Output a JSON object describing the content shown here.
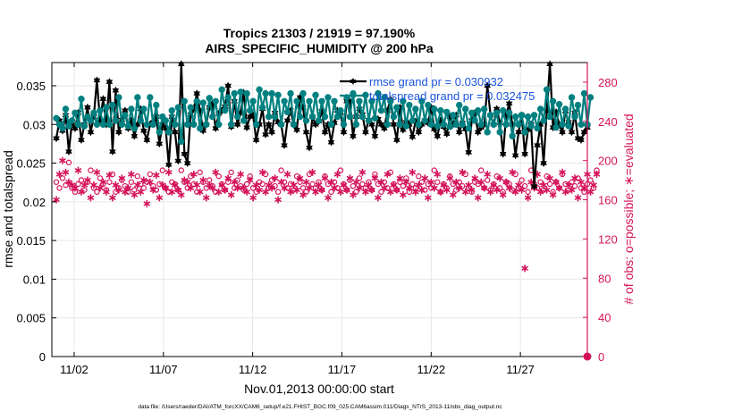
{
  "chart_data": {
    "type": "line",
    "title_lines": [
      "Tropics 21303 / 21919 = 97.190%",
      "AIRS_SPECIFIC_HUMIDITY @ 200 hPa"
    ],
    "xlabel": "Nov.01,2013 00:00:00 start",
    "ylabel_left": "rmse and totalspread",
    "ylabel_right": "# of obs: o=possible; ∗=evaluated",
    "x_ticks": [
      {
        "day": 2,
        "label": "11/02"
      },
      {
        "day": 7,
        "label": "11/07"
      },
      {
        "day": 12,
        "label": "11/12"
      },
      {
        "day": 17,
        "label": "11/17"
      },
      {
        "day": 22,
        "label": "11/22"
      },
      {
        "day": 27,
        "label": "11/27"
      }
    ],
    "xlim": [
      0.75,
      30.75
    ],
    "ylim_left": [
      0,
      0.038
    ],
    "ylim_right": [
      0,
      300
    ],
    "y_ticks_left": [
      "0",
      "0.005",
      "0.01",
      "0.015",
      "0.02",
      "0.025",
      "0.03",
      "0.035"
    ],
    "y_ticks_right": [
      "0",
      "40",
      "80",
      "120",
      "160",
      "200",
      "240",
      "280"
    ],
    "legend": [
      {
        "label": "rmse grand pr = 0.030932",
        "color": "#000000"
      },
      {
        "label": "totalspread grand pr = 0.032475",
        "color": "#008080"
      }
    ],
    "series": [
      {
        "name": "rmse",
        "color": "#000000",
        "marker": "hexagram",
        "values": [
          0.0282,
          0.0305,
          0.0292,
          0.0312,
          0.0265,
          0.0303,
          0.0295,
          0.0315,
          0.028,
          0.03,
          0.0322,
          0.029,
          0.031,
          0.0357,
          0.0305,
          0.0333,
          0.03,
          0.0355,
          0.0265,
          0.0344,
          0.029,
          0.0306,
          0.0318,
          0.0295,
          0.0305,
          0.0285,
          0.03,
          0.032,
          0.0292,
          0.028,
          0.03,
          0.0303,
          0.031,
          0.0275,
          0.03,
          0.0295,
          0.0248,
          0.031,
          0.029,
          0.0253,
          0.0378,
          0.0262,
          0.025,
          0.0313,
          0.032,
          0.034,
          0.0318,
          0.0292,
          0.03,
          0.0322,
          0.0327,
          0.0295,
          0.0314,
          0.0318,
          0.0323,
          0.035,
          0.0297,
          0.033,
          0.03,
          0.0315,
          0.0341,
          0.0296,
          0.031,
          0.0312,
          0.028,
          0.03,
          0.032,
          0.0287,
          0.03,
          0.029,
          0.0315,
          0.0303,
          0.03,
          0.0273,
          0.0305,
          0.0318,
          0.03,
          0.0293,
          0.0335,
          0.0322,
          0.029,
          0.027,
          0.031,
          0.03,
          0.0304,
          0.0317,
          0.029,
          0.03,
          0.0277,
          0.0302,
          0.0318,
          0.0315,
          0.029,
          0.033,
          0.033,
          0.0285,
          0.031,
          0.032,
          0.0313,
          0.029,
          0.0306,
          0.03,
          0.0285,
          0.0307,
          0.03,
          0.0295,
          0.0318,
          0.0332,
          0.03,
          0.028,
          0.0322,
          0.0293,
          0.0303,
          0.03,
          0.0284,
          0.0304,
          0.029,
          0.03,
          0.0305,
          0.0302,
          0.0322,
          0.0294,
          0.0285,
          0.0305,
          0.0297,
          0.0288,
          0.031,
          0.03,
          0.0312,
          0.029,
          0.0302,
          0.0294,
          0.0264,
          0.0305,
          0.0315,
          0.029,
          0.0296,
          0.03,
          0.035,
          0.0312,
          0.03,
          0.032,
          0.0302,
          0.0262,
          0.0312,
          0.0327,
          0.03,
          0.026,
          0.029,
          0.0312,
          0.0262,
          0.0293,
          0.03,
          0.022,
          0.0273,
          0.03,
          0.025,
          0.0317,
          0.0378,
          0.0296,
          0.0316,
          0.03,
          0.029,
          0.0317,
          0.0303,
          0.029,
          0.0315,
          0.0282,
          0.028,
          0.029,
          0.0296
        ]
      },
      {
        "name": "totalspread",
        "color": "#008080",
        "marker": "circle",
        "values": [
          0.0308,
          0.03,
          0.0295,
          0.032,
          0.0298,
          0.0305,
          0.0315,
          0.03,
          0.0333,
          0.0298,
          0.031,
          0.0305,
          0.0315,
          0.03,
          0.0318,
          0.03,
          0.0322,
          0.03,
          0.0325,
          0.0305,
          0.0335,
          0.03,
          0.0312,
          0.0298,
          0.032,
          0.0295,
          0.0335,
          0.0305,
          0.032,
          0.03,
          0.0335,
          0.03,
          0.0325,
          0.029,
          0.031,
          0.0305,
          0.029,
          0.0318,
          0.03,
          0.0322,
          0.0278,
          0.033,
          0.03,
          0.0322,
          0.03,
          0.033,
          0.0295,
          0.0328,
          0.03,
          0.0334,
          0.031,
          0.033,
          0.03,
          0.0345,
          0.0318,
          0.0335,
          0.03,
          0.034,
          0.031,
          0.0342,
          0.0305,
          0.034,
          0.0318,
          0.033,
          0.03,
          0.0345,
          0.0322,
          0.034,
          0.031,
          0.034,
          0.031,
          0.0338,
          0.03,
          0.033,
          0.0316,
          0.034,
          0.03,
          0.033,
          0.031,
          0.034,
          0.0305,
          0.033,
          0.031,
          0.0338,
          0.0305,
          0.033,
          0.031,
          0.0335,
          0.03,
          0.033,
          0.031,
          0.0318,
          0.03,
          0.0335,
          0.031,
          0.034,
          0.03,
          0.033,
          0.031,
          0.0338,
          0.0305,
          0.033,
          0.0308,
          0.034,
          0.0318,
          0.0335,
          0.03,
          0.033,
          0.031,
          0.0322,
          0.03,
          0.033,
          0.0298,
          0.0325,
          0.0305,
          0.032,
          0.03,
          0.033,
          0.0305,
          0.0325,
          0.03,
          0.032,
          0.0298,
          0.0318,
          0.03,
          0.0316,
          0.0297,
          0.0312,
          0.03,
          0.0325,
          0.03,
          0.032,
          0.0295,
          0.0315,
          0.0305,
          0.0318,
          0.03,
          0.032,
          0.029,
          0.0312,
          0.03,
          0.0315,
          0.029,
          0.0318,
          0.03,
          0.0315,
          0.0285,
          0.031,
          0.03,
          0.0312,
          0.029,
          0.031,
          0.0298,
          0.0312,
          0.0295,
          0.032,
          0.0305,
          0.0345,
          0.031,
          0.033,
          0.0296,
          0.0326,
          0.03,
          0.032,
          0.0298,
          0.0335,
          0.031,
          0.0325,
          0.03,
          0.034,
          0.03,
          0.0335
        ]
      },
      {
        "name": "possible",
        "color": "#d4145a",
        "marker": "o",
        "axis": "right",
        "values": [
          178,
          172,
          182,
          175,
          198,
          172,
          168,
          176,
          180,
          170,
          178,
          190,
          172,
          168,
          182,
          176,
          170,
          178,
          186,
          168,
          172,
          180,
          174,
          168,
          178,
          170,
          184,
          176,
          172,
          178,
          186,
          174,
          170,
          176,
          190,
          172,
          168,
          178,
          176,
          170,
          190,
          178,
          172,
          184,
          176,
          168,
          188,
          178,
          172,
          180,
          174,
          168,
          184,
          176,
          170,
          178,
          188,
          172,
          180,
          174,
          170,
          176,
          184,
          172,
          168,
          178,
          176,
          186,
          172,
          180,
          174,
          168,
          190,
          178,
          172,
          176,
          170,
          184,
          178,
          172,
          168,
          186,
          176,
          172,
          178,
          170,
          184,
          176,
          168,
          178,
          172,
          190,
          176,
          170,
          180,
          174,
          168,
          182,
          176,
          172,
          178,
          170,
          186,
          176,
          168,
          178,
          172,
          188,
          176,
          170,
          178,
          174,
          182,
          168,
          176,
          172,
          184,
          178,
          170,
          176,
          172,
          190,
          178,
          168,
          176,
          172,
          184,
          176,
          170,
          178,
          174,
          186,
          172,
          168,
          178,
          176,
          190,
          172,
          180,
          170,
          176,
          184,
          172,
          168,
          178,
          176,
          170,
          186,
          172,
          180,
          174,
          168,
          190,
          176,
          172,
          178,
          170,
          184,
          176,
          168,
          178,
          172,
          186,
          176,
          170,
          178,
          174,
          182,
          172,
          168,
          176,
          180,
          172,
          190
        ]
      },
      {
        "name": "evaluated",
        "color": "#d4145a",
        "marker": "star",
        "axis": "right",
        "values": [
          160,
          186,
          200,
          188,
          178,
          175,
          172,
          190,
          168,
          175,
          180,
          162,
          175,
          188,
          172,
          178,
          168,
          185,
          162,
          175,
          170,
          182,
          168,
          172,
          186,
          165,
          175,
          168,
          180,
          156,
          178,
          170,
          185,
          162,
          175,
          172,
          188,
          168,
          175,
          170,
          165,
          180,
          178,
          172,
          186,
          175,
          168,
          180,
          162,
          175,
          172,
          188,
          168,
          175,
          170,
          182,
          165,
          178,
          172,
          186,
          172,
          168,
          180,
          162,
          175,
          170,
          188,
          168,
          175,
          172,
          182,
          160,
          178,
          172,
          186,
          168,
          175,
          170,
          182,
          165,
          178,
          172,
          188,
          168,
          175,
          170,
          182,
          162,
          178,
          172,
          186,
          168,
          175,
          170,
          182,
          165,
          178,
          172,
          188,
          168,
          175,
          170,
          182,
          162,
          178,
          172,
          186,
          168,
          175,
          170,
          182,
          165,
          178,
          172,
          188,
          168,
          175,
          170,
          182,
          162,
          178,
          172,
          186,
          168,
          175,
          170,
          182,
          165,
          178,
          172,
          188,
          168,
          175,
          170,
          182,
          162,
          178,
          172,
          186,
          168,
          175,
          170,
          182,
          165,
          178,
          172,
          188,
          168,
          175,
          170,
          90,
          162,
          178,
          172,
          186,
          168,
          175,
          170,
          182,
          165,
          178,
          172,
          188,
          168,
          175,
          170,
          182,
          162,
          178,
          172,
          186,
          168,
          175,
          186
        ]
      }
    ],
    "grid": true
  },
  "footer": {
    "data_file": "data file: /Users/raeder/DAI/ATM_forcXX/CAM6_setup/f.e21.FHIST_BGC.f09_025.CAM6assim.011/Diags_NTrS_2013-11/obs_diag_output.nc"
  },
  "colors": {
    "rmse": "#000000",
    "spread": "#008080",
    "counts": "#d4145a",
    "legend_text": "#1a55e0"
  }
}
